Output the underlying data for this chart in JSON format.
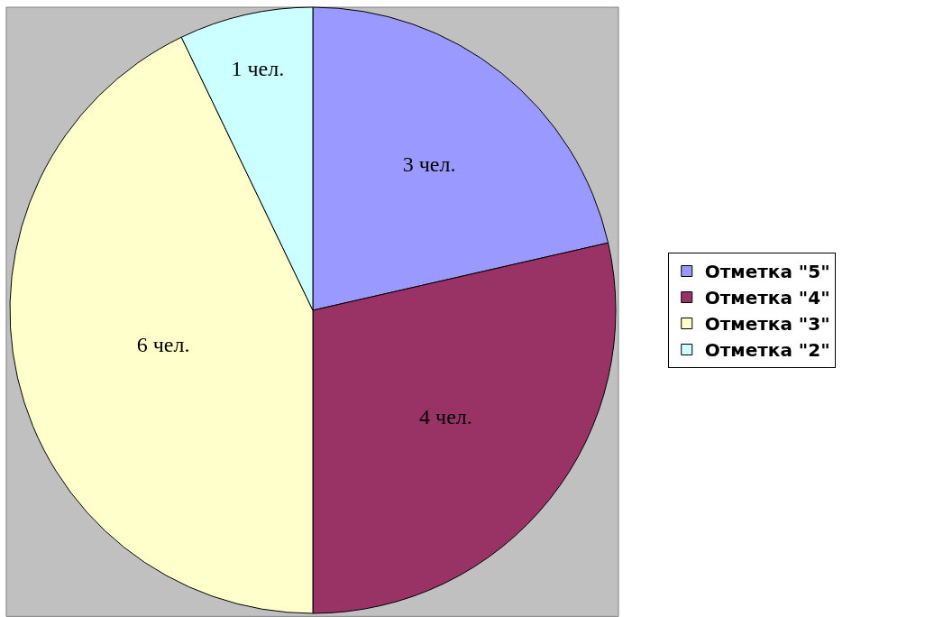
{
  "chart_data": {
    "type": "pie",
    "categories": [
      "Отметка \"5\"",
      "Отметка \"4\"",
      "Отметка \"3\"",
      "Отметка \"2\""
    ],
    "values": [
      3,
      4,
      6,
      1
    ],
    "colors": [
      "#9999ff",
      "#993366",
      "#ffffcc",
      "#ccffff"
    ],
    "value_labels": [
      "3 чел.",
      "4 чел.",
      "6 чел.",
      "1 чел."
    ],
    "legend": "right"
  }
}
